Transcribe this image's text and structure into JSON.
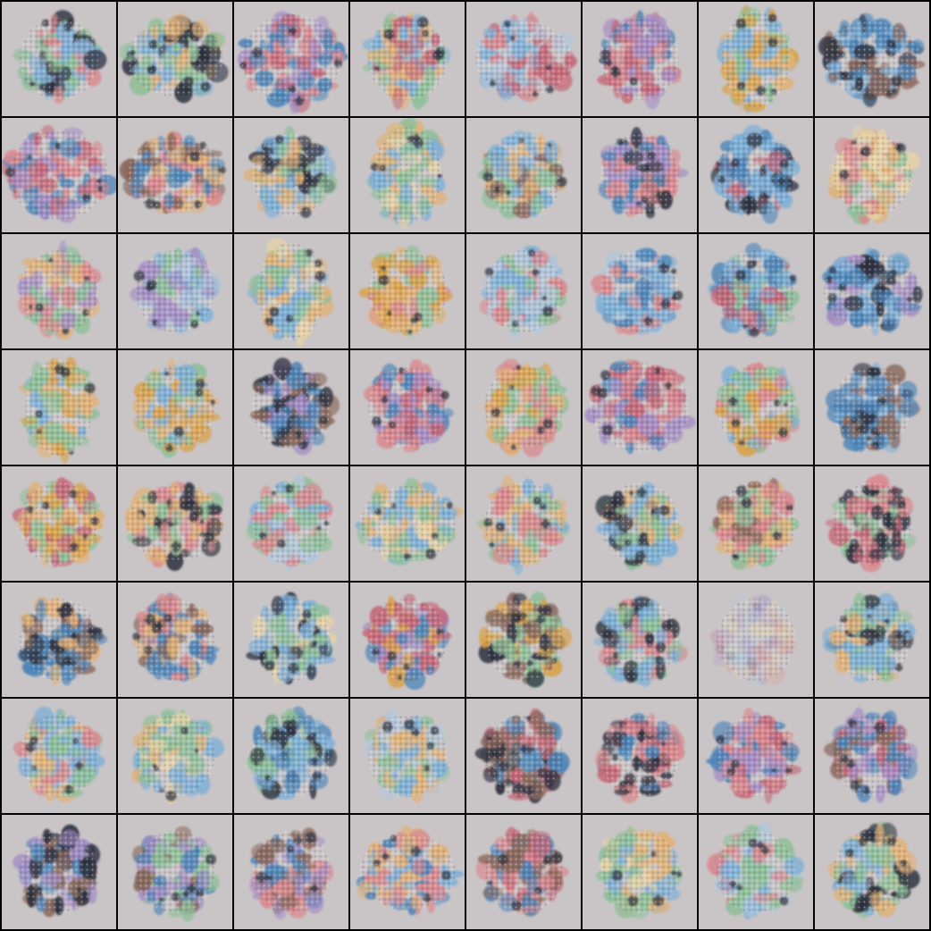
{
  "grid": {
    "rows": 8,
    "cols": 8,
    "cell_background": "#c9c5c6",
    "border_color": "#000000",
    "palette": [
      "#d98a8f",
      "#c46a7a",
      "#e0b27a",
      "#d9a24a",
      "#7fb0d6",
      "#4f86b8",
      "#8fbf9a",
      "#a58fc4",
      "#8a6a5e",
      "#2f3340",
      "#e6d2a8",
      "#b5c7d9"
    ],
    "samples": [
      {
        "palette": [
          4,
          0,
          6,
          9
        ],
        "shape": "round"
      },
      {
        "palette": [
          6,
          4,
          2,
          9
        ],
        "shape": "wide"
      },
      {
        "palette": [
          0,
          1,
          7,
          5
        ],
        "shape": "cross"
      },
      {
        "palette": [
          1,
          4,
          2,
          6
        ],
        "shape": "round"
      },
      {
        "palette": [
          0,
          4,
          11,
          1
        ],
        "shape": "wide"
      },
      {
        "palette": [
          1,
          7,
          5,
          0
        ],
        "shape": "round"
      },
      {
        "palette": [
          3,
          6,
          4,
          2
        ],
        "shape": "tall"
      },
      {
        "palette": [
          5,
          8,
          4,
          9
        ],
        "shape": "wide"
      },
      {
        "palette": [
          0,
          1,
          5,
          7
        ],
        "shape": "cross"
      },
      {
        "palette": [
          0,
          2,
          5,
          8
        ],
        "shape": "wide"
      },
      {
        "palette": [
          6,
          4,
          2,
          9
        ],
        "shape": "round"
      },
      {
        "palette": [
          2,
          4,
          6,
          10
        ],
        "shape": "tall"
      },
      {
        "palette": [
          4,
          6,
          2,
          8
        ],
        "shape": "round"
      },
      {
        "palette": [
          5,
          7,
          0,
          9
        ],
        "shape": "round"
      },
      {
        "palette": [
          5,
          4,
          1,
          9
        ],
        "shape": "round"
      },
      {
        "palette": [
          2,
          10,
          0,
          6
        ],
        "shape": "round"
      },
      {
        "palette": [
          2,
          6,
          0,
          7
        ],
        "shape": "round"
      },
      {
        "palette": [
          4,
          7,
          11,
          6
        ],
        "shape": "round"
      },
      {
        "palette": [
          2,
          6,
          4,
          10
        ],
        "shape": "tall"
      },
      {
        "palette": [
          3,
          6,
          0,
          2
        ],
        "shape": "round"
      },
      {
        "palette": [
          6,
          4,
          11,
          0
        ],
        "shape": "round"
      },
      {
        "palette": [
          4,
          0,
          11,
          5
        ],
        "shape": "round"
      },
      {
        "palette": [
          4,
          6,
          1,
          5
        ],
        "shape": "round"
      },
      {
        "palette": [
          4,
          5,
          7,
          9
        ],
        "shape": "wide"
      },
      {
        "palette": [
          2,
          6,
          4,
          3
        ],
        "shape": "tall"
      },
      {
        "palette": [
          4,
          3,
          6,
          2
        ],
        "shape": "round"
      },
      {
        "palette": [
          9,
          5,
          8,
          7
        ],
        "shape": "round"
      },
      {
        "palette": [
          0,
          7,
          1,
          5
        ],
        "shape": "round"
      },
      {
        "palette": [
          6,
          2,
          3,
          0
        ],
        "shape": "round"
      },
      {
        "palette": [
          1,
          7,
          0,
          5
        ],
        "shape": "cross"
      },
      {
        "palette": [
          0,
          4,
          6,
          3
        ],
        "shape": "round"
      },
      {
        "palette": [
          8,
          5,
          4,
          9
        ],
        "shape": "round"
      },
      {
        "palette": [
          3,
          2,
          6,
          1
        ],
        "shape": "round"
      },
      {
        "palette": [
          2,
          6,
          0,
          9
        ],
        "shape": "wide"
      },
      {
        "palette": [
          4,
          6,
          11,
          0
        ],
        "shape": "round"
      },
      {
        "palette": [
          2,
          6,
          4,
          10
        ],
        "shape": "wide"
      },
      {
        "palette": [
          6,
          2,
          0,
          4
        ],
        "shape": "round"
      },
      {
        "palette": [
          2,
          4,
          6,
          9
        ],
        "shape": "round"
      },
      {
        "palette": [
          6,
          0,
          2,
          8
        ],
        "shape": "round"
      },
      {
        "palette": [
          0,
          1,
          6,
          9
        ],
        "shape": "round"
      },
      {
        "palette": [
          5,
          2,
          8,
          9
        ],
        "shape": "round"
      },
      {
        "palette": [
          8,
          5,
          0,
          2
        ],
        "shape": "round"
      },
      {
        "palette": [
          4,
          6,
          10,
          9
        ],
        "shape": "round"
      },
      {
        "palette": [
          1,
          3,
          5,
          7
        ],
        "shape": "round"
      },
      {
        "palette": [
          8,
          6,
          3,
          9
        ],
        "shape": "round"
      },
      {
        "palette": [
          4,
          6,
          0,
          9
        ],
        "shape": "round"
      },
      {
        "palette": [
          11,
          7,
          0,
          10
        ],
        "shape": "faint"
      },
      {
        "palette": [
          2,
          6,
          4,
          9
        ],
        "shape": "round"
      },
      {
        "palette": [
          6,
          2,
          4,
          0
        ],
        "shape": "round"
      },
      {
        "palette": [
          6,
          2,
          4,
          10
        ],
        "shape": "round"
      },
      {
        "palette": [
          4,
          5,
          6,
          9
        ],
        "shape": "round"
      },
      {
        "palette": [
          4,
          6,
          11,
          2
        ],
        "shape": "round"
      },
      {
        "palette": [
          8,
          1,
          5,
          9
        ],
        "shape": "round"
      },
      {
        "palette": [
          0,
          1,
          5,
          9
        ],
        "shape": "round"
      },
      {
        "palette": [
          1,
          0,
          7,
          5
        ],
        "shape": "round"
      },
      {
        "palette": [
          1,
          7,
          8,
          5
        ],
        "shape": "round"
      },
      {
        "palette": [
          9,
          5,
          7,
          8
        ],
        "shape": "round"
      },
      {
        "palette": [
          7,
          5,
          6,
          8
        ],
        "shape": "round"
      },
      {
        "palette": [
          7,
          0,
          8,
          5
        ],
        "shape": "round"
      },
      {
        "palette": [
          4,
          5,
          2,
          0
        ],
        "shape": "wide"
      },
      {
        "palette": [
          0,
          1,
          5,
          8
        ],
        "shape": "round"
      },
      {
        "palette": [
          6,
          2,
          4,
          10
        ],
        "shape": "round"
      },
      {
        "palette": [
          4,
          11,
          6,
          0
        ],
        "shape": "round"
      },
      {
        "palette": [
          6,
          2,
          4,
          9
        ],
        "shape": "round"
      }
    ]
  }
}
